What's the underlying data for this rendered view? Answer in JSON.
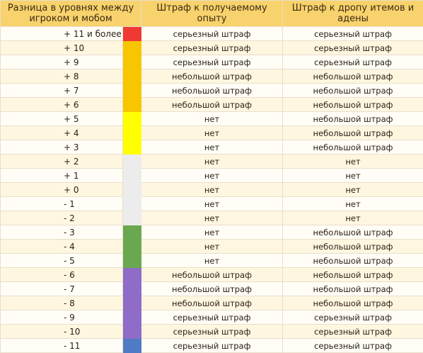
{
  "headers": {
    "diff": "Разница в уровнях между игроком и мобом",
    "exp": "Штраф к получаемому опыту",
    "drop": "Штраф к дропу итемов и адены"
  },
  "rows": [
    {
      "diff": "+ 11 и более",
      "color": "#ee3a32",
      "exp": "серьезный штраф",
      "drop": "серьезный штраф"
    },
    {
      "diff": "+ 10",
      "color": "#f7c600",
      "exp": "серьезный штраф",
      "drop": "серьезный штраф"
    },
    {
      "diff": "+ 9",
      "color": "#f7c600",
      "exp": "серьезный штраф",
      "drop": "серьезный штраф"
    },
    {
      "diff": "+ 8",
      "color": "#f7c600",
      "exp": "небольшой штраф",
      "drop": "небольшой штраф"
    },
    {
      "diff": "+ 7",
      "color": "#f7c600",
      "exp": "небольшой штраф",
      "drop": "небольшой штраф"
    },
    {
      "diff": "+ 6",
      "color": "#f7c600",
      "exp": "небольшой штраф",
      "drop": "небольшой штраф"
    },
    {
      "diff": "+ 5",
      "color": "#ffff00",
      "exp": "нет",
      "drop": "небольшой штраф"
    },
    {
      "diff": "+ 4",
      "color": "#ffff00",
      "exp": "нет",
      "drop": "небольшой штраф"
    },
    {
      "diff": "+ 3",
      "color": "#ffff00",
      "exp": "нет",
      "drop": "небольшой штраф"
    },
    {
      "diff": "+ 2",
      "color": "#ececec",
      "exp": "нет",
      "drop": "нет"
    },
    {
      "diff": "+ 1",
      "color": "#ececec",
      "exp": "нет",
      "drop": "нет"
    },
    {
      "diff": "+ 0",
      "color": "#ececec",
      "exp": "нет",
      "drop": "нет"
    },
    {
      "diff": "- 1",
      "color": "#ececec",
      "exp": "нет",
      "drop": "нет"
    },
    {
      "diff": "- 2",
      "color": "#ececec",
      "exp": "нет",
      "drop": "нет"
    },
    {
      "diff": "- 3",
      "color": "#6aa84f",
      "exp": "нет",
      "drop": "небольшой штраф"
    },
    {
      "diff": "- 4",
      "color": "#6aa84f",
      "exp": "нет",
      "drop": "небольшой штраф"
    },
    {
      "diff": "- 5",
      "color": "#6aa84f",
      "exp": "нет",
      "drop": "небольшой штраф"
    },
    {
      "diff": "- 6",
      "color": "#8e6cc8",
      "exp": "небольшой штраф",
      "drop": "небольшой штраф"
    },
    {
      "diff": "- 7",
      "color": "#8e6cc8",
      "exp": "небольшой штраф",
      "drop": "небольшой штраф"
    },
    {
      "diff": "- 8",
      "color": "#8e6cc8",
      "exp": "небольшой штраф",
      "drop": "небольшой штраф"
    },
    {
      "diff": "- 9",
      "color": "#8e6cc8",
      "exp": "серьезный штраф",
      "drop": "серьезный штраф"
    },
    {
      "diff": "- 10",
      "color": "#8e6cc8",
      "exp": "серьезный штраф",
      "drop": "серьезный штраф"
    },
    {
      "diff": "- 11",
      "color": "#4f7bc4",
      "exp": "серьезный штраф",
      "drop": "серьезный штраф"
    }
  ]
}
